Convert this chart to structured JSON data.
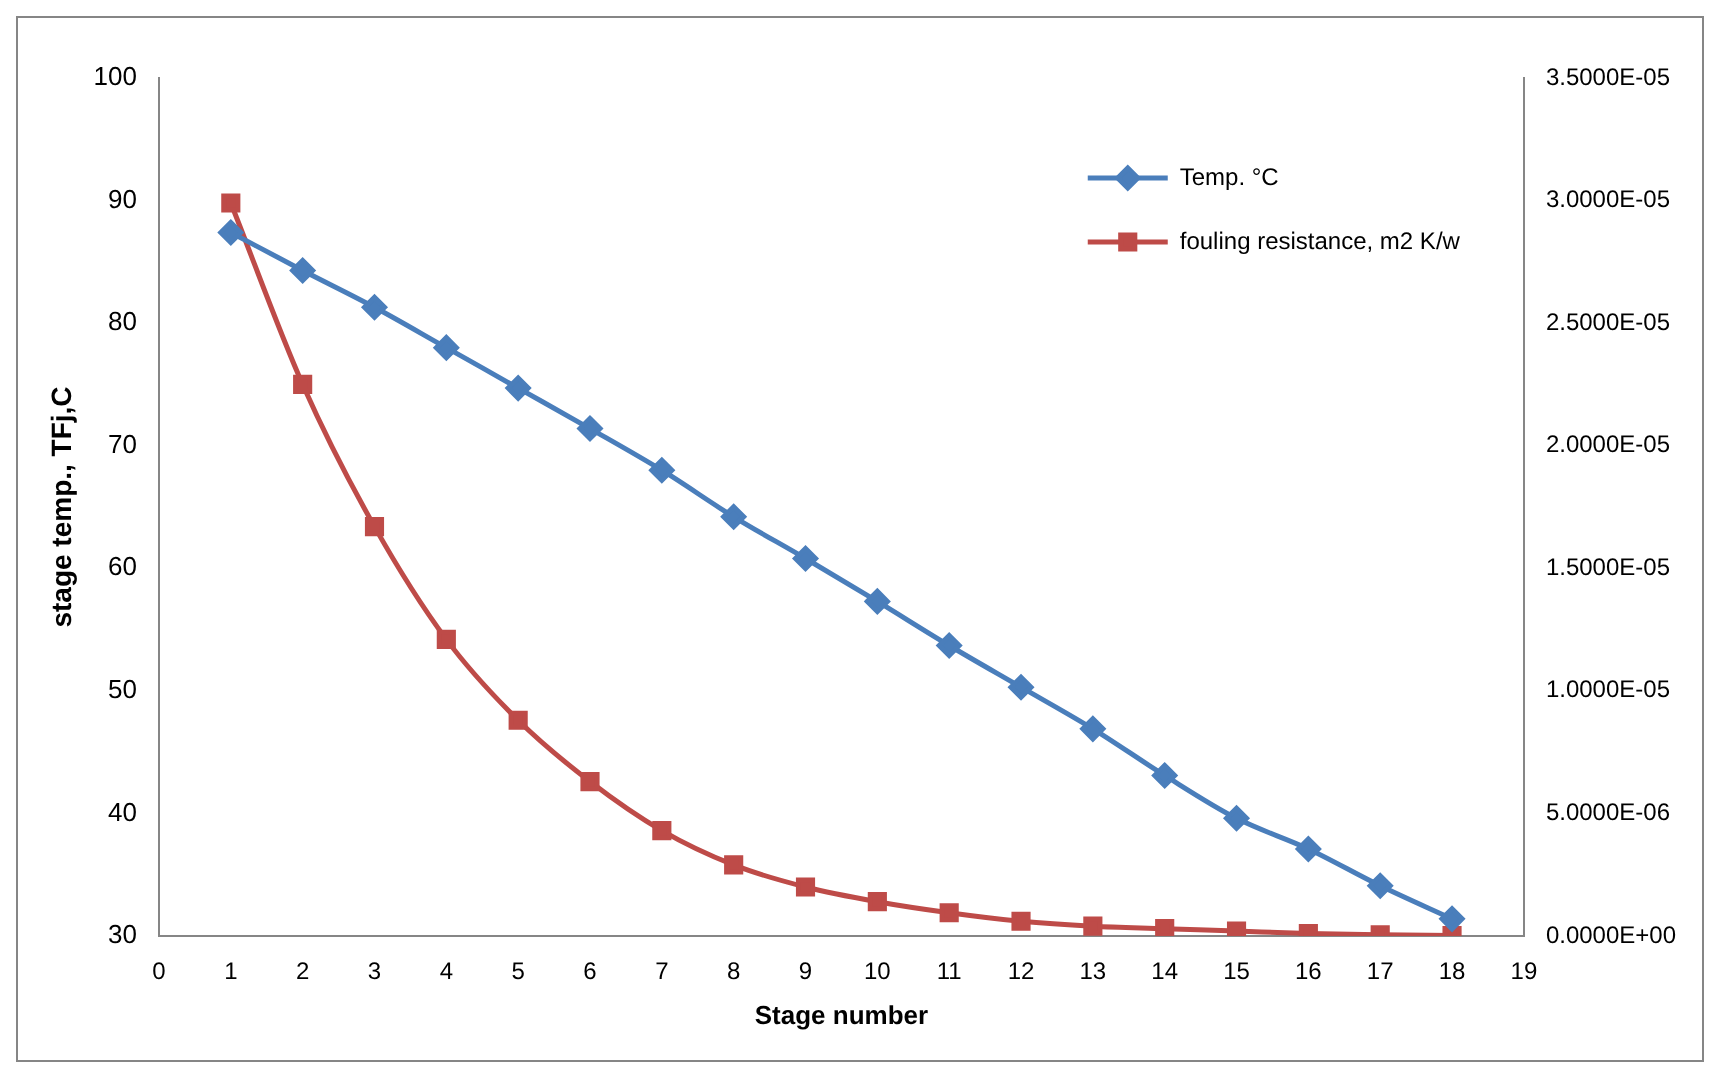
{
  "chart_data": {
    "type": "line",
    "xlabel": "Stage number",
    "ylabel": "stage temp., TFj,C",
    "xlim": [
      0,
      19
    ],
    "xticks": [
      0,
      1,
      2,
      3,
      4,
      5,
      6,
      7,
      8,
      9,
      10,
      11,
      12,
      13,
      14,
      15,
      16,
      17,
      18,
      19
    ],
    "ylim": [
      30,
      100
    ],
    "yticks": [
      30,
      40,
      50,
      60,
      70,
      80,
      90,
      100
    ],
    "y2lim": [
      0,
      3.5e-05
    ],
    "y2ticks": [
      {
        "value": 0,
        "label": "0.0000E+00"
      },
      {
        "value": 5e-06,
        "label": "5.0000E-06"
      },
      {
        "value": 1e-05,
        "label": "1.0000E-05"
      },
      {
        "value": 1.5e-05,
        "label": "1.5000E-05"
      },
      {
        "value": 2e-05,
        "label": "2.0000E-05"
      },
      {
        "value": 2.5e-05,
        "label": "2.5000E-05"
      },
      {
        "value": 3e-05,
        "label": "3.0000E-05"
      },
      {
        "value": 3.5e-05,
        "label": "3.5000E-05"
      }
    ],
    "grid": false,
    "legend": "top right",
    "series": [
      {
        "name": "Temp. °C",
        "color": "#4a7ebb",
        "marker": "diamond",
        "x": [
          1,
          2,
          3,
          4,
          5,
          6,
          7,
          8,
          9,
          10,
          11,
          12,
          13,
          14,
          15,
          16,
          17,
          18
        ],
        "values": [
          87.4,
          84.3,
          81.3,
          78.0,
          74.7,
          71.4,
          68.0,
          64.2,
          60.8,
          57.3,
          53.7,
          50.3,
          46.9,
          43.1,
          39.6,
          37.1,
          34.1,
          31.4
        ]
      },
      {
        "name": "fouling resistance, m2 K/w",
        "color": "#be4b48",
        "marker": "square",
        "axis": "y2",
        "x": [
          1,
          2,
          3,
          4,
          5,
          6,
          7,
          8,
          9,
          10,
          11,
          12,
          13,
          14,
          15,
          16,
          17,
          18
        ],
        "values": [
          2.99e-05,
          2.25e-05,
          1.67e-05,
          1.21e-05,
          8.8e-06,
          6.3e-06,
          4.3e-06,
          2.9e-06,
          2e-06,
          1.4e-06,
          9.5e-07,
          6e-07,
          4e-07,
          3e-07,
          2e-07,
          1e-07,
          5e-08,
          2e-08
        ]
      }
    ]
  }
}
